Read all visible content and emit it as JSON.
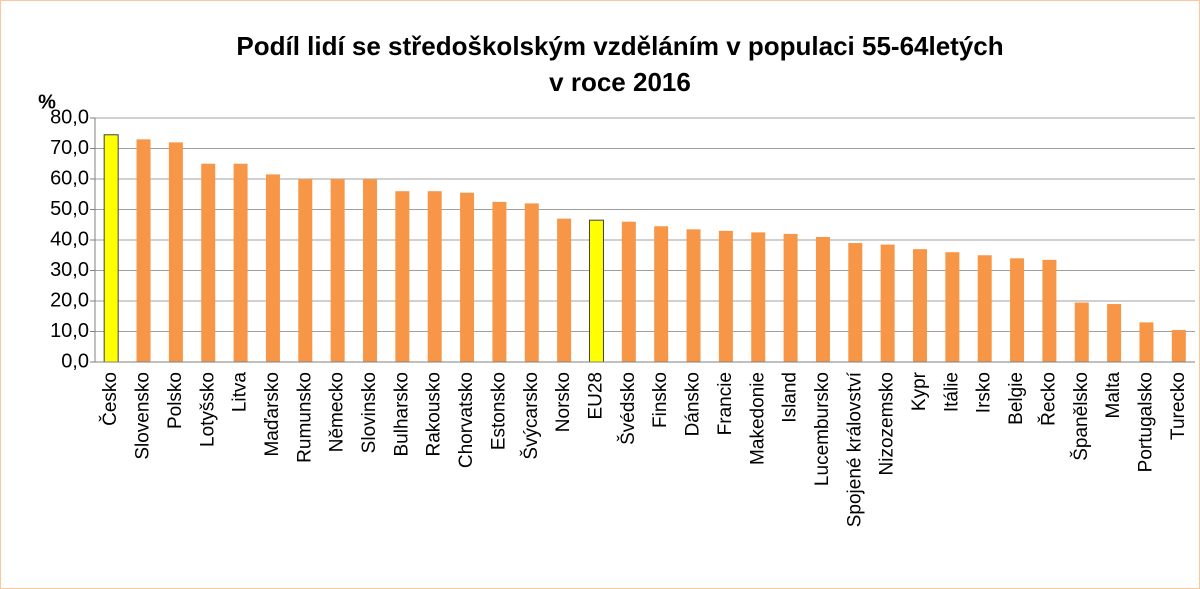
{
  "chart_data": {
    "type": "bar",
    "title": [
      "Podíl lidí se středoškolským vzděláním v populaci 55-64letých",
      "v roce 2016"
    ],
    "y_label": "%",
    "categories": [
      "Česko",
      "Slovensko",
      "Polsko",
      "Lotyšsko",
      "Litva",
      "Maďarsko",
      "Rumunsko",
      "Německo",
      "Slovinsko",
      "Bulharsko",
      "Rakousko",
      "Chorvatsko",
      "Estonsko",
      "Švýcarsko",
      "Norsko",
      "EU28",
      "Švédsko",
      "Finsko",
      "Dánsko",
      "Francie",
      "Makedonie",
      "Island",
      "Lucembursko",
      "Spojené království",
      "Nizozemsko",
      "Kypr",
      "Itálie",
      "Irsko",
      "Belgie",
      "Řecko",
      "Španělsko",
      "Malta",
      "Portugalsko",
      "Turecko"
    ],
    "values": [
      74.5,
      73,
      72,
      65,
      65,
      61.5,
      60,
      60,
      60,
      56,
      56,
      55.5,
      52.5,
      52,
      47,
      46.5,
      46,
      44.5,
      43.5,
      43,
      42.5,
      42,
      41,
      39,
      38.5,
      37,
      36,
      35,
      34,
      33.5,
      19.5,
      19,
      13,
      10.5
    ],
    "colors": [
      "#ffff00",
      "#f79646",
      "#f79646",
      "#f79646",
      "#f79646",
      "#f79646",
      "#f79646",
      "#f79646",
      "#f79646",
      "#f79646",
      "#f79646",
      "#f79646",
      "#f79646",
      "#f79646",
      "#f79646",
      "#ffff00",
      "#f79646",
      "#f79646",
      "#f79646",
      "#f79646",
      "#f79646",
      "#f79646",
      "#f79646",
      "#f79646",
      "#f79646",
      "#f79646",
      "#f79646",
      "#f79646",
      "#f79646",
      "#f79646",
      "#f79646",
      "#f79646",
      "#f79646",
      "#f79646"
    ],
    "ylim": [
      0,
      80
    ],
    "yticks": [
      {
        "value": 0,
        "label": "0,0"
      },
      {
        "value": 10,
        "label": "10,0"
      },
      {
        "value": 20,
        "label": "20,0"
      },
      {
        "value": 30,
        "label": "30,0"
      },
      {
        "value": 40,
        "label": "40,0"
      },
      {
        "value": 50,
        "label": "50,0"
      },
      {
        "value": 60,
        "label": "60,0"
      },
      {
        "value": 70,
        "label": "70,0"
      },
      {
        "value": 80,
        "label": "80,0"
      }
    ],
    "grid": true
  }
}
